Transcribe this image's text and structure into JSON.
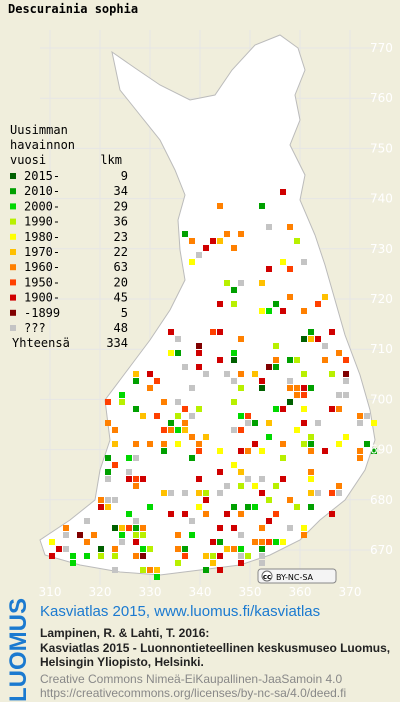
{
  "title": "Descurainia sophia",
  "legend": {
    "heading": [
      "Uusimman",
      "havainnon"
    ],
    "col_year": "vuosi",
    "col_count": "lkm",
    "rows": [
      {
        "label": "2015-",
        "count": 9,
        "color": "#006000"
      },
      {
        "label": "2010-",
        "count": 34,
        "color": "#00a000"
      },
      {
        "label": "2000-",
        "count": 29,
        "color": "#00d800"
      },
      {
        "label": "1990-",
        "count": 36,
        "color": "#b8f000"
      },
      {
        "label": "1980-",
        "count": 23,
        "color": "#ffff00"
      },
      {
        "label": "1970-",
        "count": 22,
        "color": "#ffc000"
      },
      {
        "label": "1960-",
        "count": 63,
        "color": "#ff8000"
      },
      {
        "label": "1950-",
        "count": 20,
        "color": "#ff4000"
      },
      {
        "label": "1900-",
        "count": 45,
        "color": "#d00000"
      },
      {
        "label": "-1899",
        "count": 5,
        "color": "#800000"
      },
      {
        "label": "???",
        "count": 48,
        "color": "#c4c4c4"
      }
    ],
    "total_label": "Yhteensä",
    "total": 334
  },
  "grid": {
    "y_labels": [
      770,
      760,
      750,
      740,
      730,
      720,
      710,
      700,
      690,
      680,
      670
    ],
    "x_labels": [
      310,
      320,
      330,
      340,
      350,
      360,
      370
    ]
  },
  "license_badge": [
    "cc",
    "BY-NC-SA"
  ],
  "footer": {
    "logo": "LUOMUS",
    "link": "Kasviatlas 2015, www.luomus.fi/kasviatlas",
    "citation": [
      "Lampinen, R. & Lahti, T. 2016:",
      "Kasviatlas 2015 - Luonnontieteellinen keskusmuseo Luomus,",
      "Helsingin Yliopisto, Helsinki."
    ],
    "license": [
      "Creative Commons Nimeä-EiKaupallinen-JaaSamoin 4.0",
      "https://creativecommons.org/licenses/by-nc-sa/4.0/deed.fi"
    ]
  }
}
